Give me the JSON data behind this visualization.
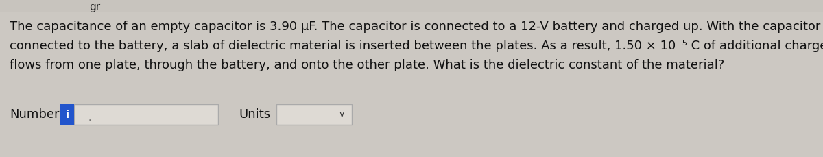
{
  "background_color": "#ccc8c2",
  "text_lines": [
    "The capacitance of an empty capacitor is 3.90 μF. The capacitor is connected to a 12-V battery and charged up. With the capacitor",
    "connected to the battery, a slab of dielectric material is inserted between the plates. As a result, 1.50 × 10⁻⁵ C of additional charge",
    "flows from one plate, through the battery, and onto the other plate. What is the dielectric constant of the material?"
  ],
  "font_size": 13.0,
  "font_color": "#111111",
  "number_label": "Number",
  "units_label": "Units",
  "info_btn_color": "#2255cc",
  "input_box_color": "#dedad4",
  "input_box_edge_color": "#aaaaaa",
  "dropdown_arrow": "v",
  "header_text": "gr",
  "header_color": "#222222"
}
